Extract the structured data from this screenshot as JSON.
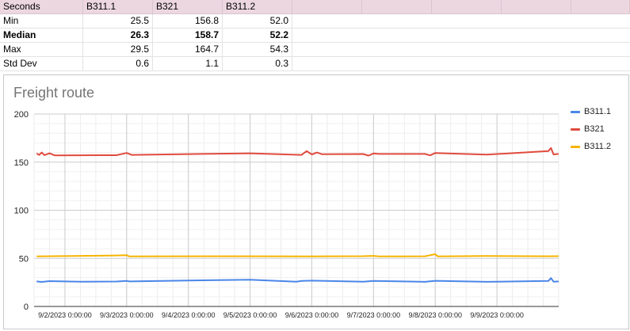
{
  "table": {
    "headers": [
      "Seconds",
      "B311.1",
      "B321",
      "B311.2"
    ],
    "rows": [
      {
        "label": "Min",
        "values": [
          "25.5",
          "156.8",
          "52.0"
        ],
        "bold": false
      },
      {
        "label": "Median",
        "values": [
          "26.3",
          "158.7",
          "52.2"
        ],
        "bold": true
      },
      {
        "label": "Max",
        "values": [
          "29.5",
          "164.7",
          "54.3"
        ],
        "bold": false
      },
      {
        "label": "Std Dev",
        "values": [
          "0.6",
          "1.1",
          "0.3"
        ],
        "bold": false
      }
    ]
  },
  "chart_data": {
    "type": "line",
    "title": "Freight route",
    "xlabel": "",
    "ylabel": "",
    "ylim": [
      0,
      200
    ],
    "yticks": [
      "0",
      "50",
      "100",
      "150",
      "200"
    ],
    "xlim": [
      "2023-09-01 12:00",
      "2023-09-10 00:00"
    ],
    "xticks": [
      "9/2/2023 0:00:00",
      "9/3/2023 0:00:00",
      "9/4/2023 0:00:00",
      "9/5/2023 0:00:00",
      "9/6/2023 0:00:00",
      "9/7/2023 0:00:00",
      "9/8/2023 0:00:00",
      "9/9/2023 0:00:00"
    ],
    "grid": true,
    "legend_position": "right",
    "series": [
      {
        "name": "B311.1",
        "color": "#4a86e8",
        "points": [
          [
            "2023-09-01 13:00",
            26.0
          ],
          [
            "2023-09-01 15:00",
            25.5
          ],
          [
            "2023-09-01 18:00",
            26.3
          ],
          [
            "2023-09-02 06:00",
            25.8
          ],
          [
            "2023-09-02 20:00",
            25.9
          ],
          [
            "2023-09-03 00:00",
            26.6
          ],
          [
            "2023-09-03 01:00",
            26.0
          ],
          [
            "2023-09-04 00:00",
            27.0
          ],
          [
            "2023-09-05 00:00",
            27.8
          ],
          [
            "2023-09-05 18:00",
            25.8
          ],
          [
            "2023-09-05 20:00",
            26.5
          ],
          [
            "2023-09-06 00:00",
            26.8
          ],
          [
            "2023-09-06 20:00",
            25.7
          ],
          [
            "2023-09-07 00:00",
            26.6
          ],
          [
            "2023-09-07 20:00",
            25.6
          ],
          [
            "2023-09-08 00:00",
            26.7
          ],
          [
            "2023-09-08 20:00",
            25.6
          ],
          [
            "2023-09-09 20:00",
            26.5
          ],
          [
            "2023-09-09 21:00",
            29.5
          ],
          [
            "2023-09-09 22:00",
            25.8
          ],
          [
            "2023-09-10 00:00",
            26.0
          ]
        ]
      },
      {
        "name": "B321",
        "color": "#e04b3f",
        "points": [
          [
            "2023-09-01 13:00",
            159.0
          ],
          [
            "2023-09-01 14:00",
            157.5
          ],
          [
            "2023-09-01 15:00",
            160.0
          ],
          [
            "2023-09-01 16:00",
            157.3
          ],
          [
            "2023-09-01 18:00",
            159.2
          ],
          [
            "2023-09-01 20:00",
            157.0
          ],
          [
            "2023-09-02 20:00",
            157.2
          ],
          [
            "2023-09-03 00:00",
            159.5
          ],
          [
            "2023-09-03 02:00",
            157.5
          ],
          [
            "2023-09-05 00:00",
            159.2
          ],
          [
            "2023-09-05 20:00",
            157.5
          ],
          [
            "2023-09-05 22:00",
            161.5
          ],
          [
            "2023-09-06 00:00",
            158.0
          ],
          [
            "2023-09-06 02:00",
            160.0
          ],
          [
            "2023-09-06 04:00",
            158.2
          ],
          [
            "2023-09-06 20:00",
            158.4
          ],
          [
            "2023-09-06 22:00",
            156.8
          ],
          [
            "2023-09-07 00:00",
            159.0
          ],
          [
            "2023-09-07 02:00",
            158.5
          ],
          [
            "2023-09-07 20:00",
            158.5
          ],
          [
            "2023-09-07 22:00",
            157.0
          ],
          [
            "2023-09-08 00:00",
            159.5
          ],
          [
            "2023-09-08 20:00",
            157.8
          ],
          [
            "2023-09-09 20:00",
            161.5
          ],
          [
            "2023-09-09 21:00",
            164.7
          ],
          [
            "2023-09-09 22:00",
            158.0
          ],
          [
            "2023-09-10 00:00",
            158.5
          ]
        ]
      },
      {
        "name": "B311.2",
        "color": "#f6b400",
        "points": [
          [
            "2023-09-01 13:00",
            52.0
          ],
          [
            "2023-09-02 20:00",
            53.0
          ],
          [
            "2023-09-03 00:00",
            53.3
          ],
          [
            "2023-09-03 01:00",
            52.0
          ],
          [
            "2023-09-05 00:00",
            52.2
          ],
          [
            "2023-09-06 00:00",
            52.0
          ],
          [
            "2023-09-06 20:00",
            52.3
          ],
          [
            "2023-09-07 00:00",
            52.6
          ],
          [
            "2023-09-07 02:00",
            52.0
          ],
          [
            "2023-09-07 20:00",
            52.2
          ],
          [
            "2023-09-08 00:00",
            54.3
          ],
          [
            "2023-09-08 01:00",
            52.0
          ],
          [
            "2023-09-08 20:00",
            52.4
          ],
          [
            "2023-09-09 20:00",
            52.2
          ],
          [
            "2023-09-10 00:00",
            52.3
          ]
        ]
      }
    ]
  }
}
